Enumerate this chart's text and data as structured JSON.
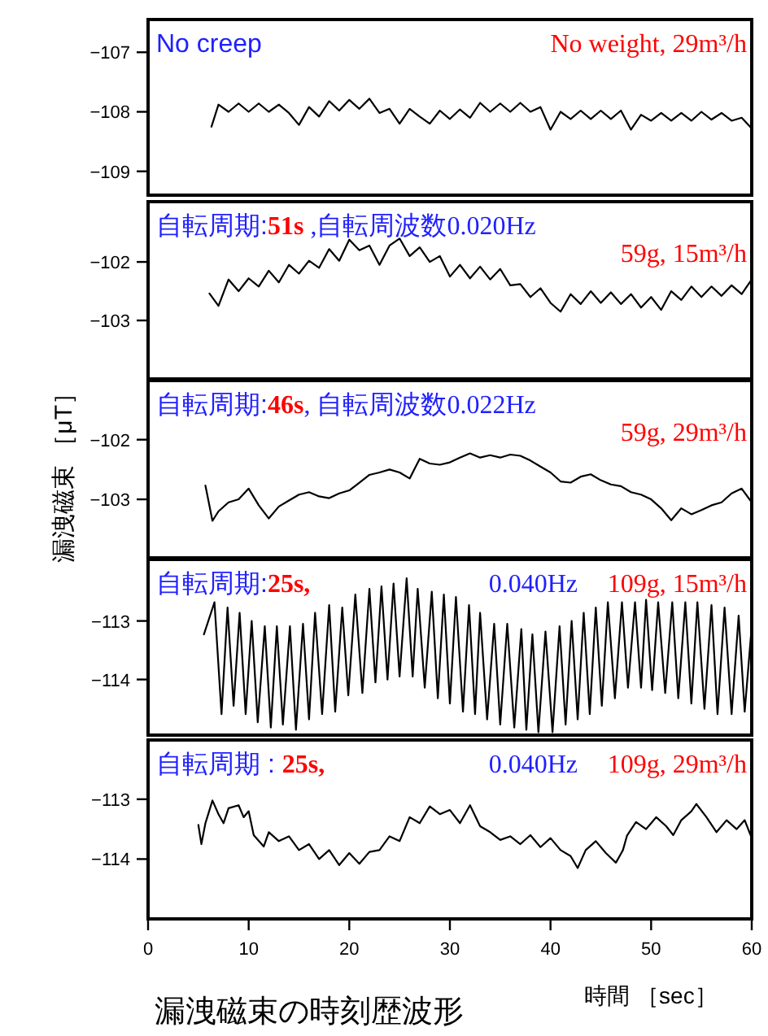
{
  "chart_data": [
    {
      "type": "line",
      "xlim": [
        0,
        60
      ],
      "ylim": [
        -109.4,
        -106.45
      ],
      "yticks": [
        -109,
        -108,
        -107
      ],
      "tick_labels": "y",
      "grid": false,
      "annotations": [
        "No creep",
        "No weight, 29m³/h"
      ],
      "x": [
        6.3,
        7,
        8,
        9,
        10,
        11,
        12,
        13,
        14,
        15,
        16,
        17,
        18,
        19,
        20,
        21,
        22,
        23,
        24,
        25,
        26,
        27,
        28,
        29,
        30,
        31,
        32,
        33,
        34,
        35,
        36,
        37,
        38,
        39,
        40,
        41,
        42,
        43,
        44,
        45,
        46,
        47,
        48,
        49,
        50,
        51,
        52,
        53,
        54,
        55,
        56,
        57,
        58,
        59,
        60
      ],
      "series": [
        {
          "color": "#000000",
          "values": [
            -108.25,
            -107.88,
            -108.0,
            -107.86,
            -108.0,
            -107.86,
            -108.0,
            -107.88,
            -108.02,
            -108.22,
            -107.92,
            -108.08,
            -107.82,
            -107.98,
            -107.8,
            -107.95,
            -107.78,
            -108.02,
            -107.95,
            -108.2,
            -107.95,
            -108.08,
            -108.2,
            -107.98,
            -108.12,
            -107.96,
            -108.1,
            -107.85,
            -108.0,
            -107.86,
            -108.0,
            -107.85,
            -108.0,
            -107.92,
            -108.3,
            -108.0,
            -108.12,
            -107.98,
            -108.12,
            -107.98,
            -108.12,
            -107.98,
            -108.3,
            -108.05,
            -108.15,
            -108.02,
            -108.15,
            -108.02,
            -108.15,
            -108.0,
            -108.13,
            -108.02,
            -108.15,
            -108.1,
            -108.28
          ]
        }
      ]
    },
    {
      "type": "line",
      "xlim": [
        0,
        60
      ],
      "ylim": [
        -104.0,
        -100.97
      ],
      "yticks": [
        -103,
        -102
      ],
      "tick_labels": "y",
      "grid": false,
      "annotations": [
        "自転周期:",
        "51s",
        " ,自転周波数0.020Hz",
        "59g, 15m³/h"
      ],
      "x": [
        6.1,
        7,
        8,
        9,
        10,
        11,
        12,
        13,
        14,
        15,
        16,
        17,
        18,
        19,
        20,
        21,
        22,
        23,
        24,
        25,
        26,
        27,
        28,
        29,
        30,
        31,
        32,
        33,
        34,
        35,
        36,
        37,
        38,
        39,
        40,
        41,
        42,
        43,
        44,
        45,
        46,
        47,
        48,
        49,
        50,
        51,
        52,
        53,
        54,
        55,
        56,
        57,
        58,
        59,
        60
      ],
      "series": [
        {
          "color": "#000000",
          "values": [
            -102.54,
            -102.75,
            -102.3,
            -102.5,
            -102.28,
            -102.42,
            -102.15,
            -102.35,
            -102.05,
            -102.2,
            -101.98,
            -102.1,
            -101.78,
            -101.98,
            -101.62,
            -101.8,
            -101.72,
            -102.05,
            -101.72,
            -101.6,
            -101.9,
            -101.75,
            -102.0,
            -101.9,
            -102.25,
            -102.05,
            -102.28,
            -102.08,
            -102.3,
            -102.12,
            -102.4,
            -102.38,
            -102.6,
            -102.45,
            -102.7,
            -102.85,
            -102.55,
            -102.72,
            -102.5,
            -102.7,
            -102.52,
            -102.72,
            -102.55,
            -102.78,
            -102.6,
            -102.82,
            -102.5,
            -102.65,
            -102.42,
            -102.6,
            -102.42,
            -102.58,
            -102.4,
            -102.55,
            -102.3
          ]
        }
      ]
    },
    {
      "type": "line",
      "xlim": [
        0,
        60
      ],
      "ylim": [
        -103.98,
        -101.01
      ],
      "yticks": [
        -103,
        -102
      ],
      "tick_labels": "y",
      "grid": false,
      "ylabel": "漏洩磁束 ［μT］",
      "annotations": [
        "自転周期:",
        "46s",
        ", 自転周波数0.022Hz",
        "59g, 29m³/h"
      ],
      "x": [
        5.7,
        6.4,
        7,
        8,
        9,
        10,
        11,
        12,
        13,
        14,
        15,
        16,
        17,
        18,
        19,
        20,
        21,
        22,
        23,
        24,
        25,
        26,
        27,
        28,
        29,
        30,
        31,
        32,
        33,
        34,
        35,
        36,
        37,
        38,
        39,
        40,
        41,
        42,
        43,
        44,
        45,
        46,
        47,
        48,
        49,
        50,
        51,
        52,
        53,
        54,
        55,
        56,
        57,
        58,
        59,
        60
      ],
      "series": [
        {
          "color": "#000000",
          "values": [
            -102.77,
            -103.36,
            -103.2,
            -103.05,
            -103.0,
            -102.82,
            -103.1,
            -103.32,
            -103.12,
            -103.02,
            -102.92,
            -102.88,
            -102.95,
            -102.98,
            -102.9,
            -102.85,
            -102.72,
            -102.59,
            -102.55,
            -102.5,
            -102.55,
            -102.65,
            -102.32,
            -102.4,
            -102.42,
            -102.38,
            -102.3,
            -102.23,
            -102.3,
            -102.26,
            -102.3,
            -102.25,
            -102.27,
            -102.35,
            -102.45,
            -102.55,
            -102.7,
            -102.72,
            -102.62,
            -102.58,
            -102.68,
            -102.75,
            -102.78,
            -102.88,
            -102.92,
            -103.0,
            -103.15,
            -103.35,
            -103.15,
            -103.25,
            -103.18,
            -103.1,
            -103.05,
            -102.9,
            -102.82,
            -103.05
          ]
        }
      ]
    },
    {
      "type": "line",
      "xlim": [
        0,
        60
      ],
      "ylim": [
        -114.95,
        -111.95
      ],
      "yticks": [
        -114,
        -113
      ],
      "tick_labels": "y",
      "grid": false,
      "annotations": [
        "自転周期:",
        "25s,",
        "0.040Hz",
        "109g, 15m³/h"
      ],
      "x": [
        5.55,
        6.6,
        7.3,
        7.9,
        8.5,
        9.1,
        9.7,
        10.3,
        10.9,
        11.6,
        12.2,
        12.8,
        13.4,
        14.1,
        14.7,
        15.4,
        16.0,
        16.6,
        17.3,
        18.0,
        18.6,
        19.3,
        19.9,
        20.6,
        21.3,
        22.0,
        22.6,
        23.2,
        23.8,
        24.4,
        25.0,
        25.7,
        26.3,
        26.8,
        27.5,
        28.2,
        28.8,
        29.4,
        30.0,
        30.6,
        31.3,
        31.9,
        32.5,
        33.0,
        33.7,
        34.4,
        35.0,
        35.7,
        36.4,
        37.1,
        37.6,
        38.2,
        38.8,
        39.5,
        40.2,
        40.9,
        41.5,
        42.1,
        42.7,
        43.3,
        43.9,
        44.5,
        45.1,
        45.7,
        46.4,
        47.1,
        47.7,
        48.4,
        49.0,
        49.5,
        50.1,
        50.7,
        51.4,
        52.1,
        52.7,
        53.4,
        54.0,
        54.6,
        55.3,
        56.0,
        56.6,
        57.3,
        58.0,
        58.7,
        59.3,
        60.0
      ],
      "series": [
        {
          "color": "#000000",
          "values": [
            -113.23,
            -112.68,
            -114.59,
            -112.77,
            -114.45,
            -112.86,
            -114.59,
            -113.0,
            -114.73,
            -113.09,
            -114.82,
            -113.09,
            -114.77,
            -113.09,
            -114.86,
            -113.05,
            -114.68,
            -112.86,
            -114.59,
            -112.73,
            -114.55,
            -112.77,
            -114.27,
            -112.55,
            -114.23,
            -112.45,
            -114.05,
            -112.41,
            -114.0,
            -112.36,
            -113.95,
            -112.27,
            -113.95,
            -112.45,
            -114.14,
            -112.5,
            -114.32,
            -112.55,
            -114.41,
            -112.59,
            -114.55,
            -112.73,
            -114.59,
            -112.86,
            -114.68,
            -113.05,
            -114.77,
            -113.05,
            -114.82,
            -113.14,
            -114.86,
            -113.23,
            -114.9,
            -113.18,
            -114.9,
            -113.09,
            -114.77,
            -113.0,
            -114.68,
            -112.86,
            -114.59,
            -112.77,
            -114.45,
            -112.68,
            -114.32,
            -112.68,
            -114.14,
            -112.68,
            -114.14,
            -112.64,
            -114.18,
            -112.68,
            -114.23,
            -112.68,
            -114.32,
            -112.68,
            -114.41,
            -112.68,
            -114.5,
            -112.73,
            -114.59,
            -112.77,
            -114.59,
            -112.91,
            -114.55,
            -113.09
          ]
        }
      ]
    },
    {
      "type": "line",
      "xlim": [
        0,
        60
      ],
      "ylim": [
        -115.0,
        -112.01
      ],
      "yticks": [
        -114,
        -113
      ],
      "xticks": [
        0,
        10,
        20,
        30,
        40,
        50,
        60
      ],
      "grid": false,
      "title": "漏洩磁束の時刻歴波形",
      "xlabel": "時間 ［sec］",
      "annotations": [
        "自転周期 : ",
        "25s,",
        "0.040Hz",
        "109g, 29m³/h"
      ],
      "x": [
        5.0,
        5.3,
        5.7,
        6.4,
        7,
        7.5,
        8,
        9,
        9.5,
        10,
        10.5,
        11.5,
        12,
        13,
        14,
        15,
        16,
        17,
        18,
        19,
        20,
        21,
        22,
        23,
        24,
        25,
        26,
        27,
        28,
        29,
        30,
        31,
        32,
        33,
        34,
        35,
        36,
        37,
        38,
        39,
        40,
        41,
        42,
        42.7,
        43.5,
        44.5,
        45.5,
        46.5,
        47.2,
        47.6,
        48.5,
        49.5,
        50.5,
        51.5,
        52.2,
        53,
        54,
        54.5,
        55.5,
        56.5,
        57.5,
        58.5,
        59.3,
        60
      ],
      "series": [
        {
          "color": "#000000",
          "values": [
            -113.43,
            -113.75,
            -113.4,
            -113.02,
            -113.25,
            -113.4,
            -113.15,
            -113.1,
            -113.3,
            -113.2,
            -113.6,
            -113.79,
            -113.55,
            -113.7,
            -113.62,
            -113.85,
            -113.75,
            -114.0,
            -113.85,
            -114.1,
            -113.9,
            -114.08,
            -113.88,
            -113.85,
            -113.62,
            -113.7,
            -113.3,
            -113.4,
            -113.12,
            -113.25,
            -113.18,
            -113.4,
            -113.1,
            -113.45,
            -113.55,
            -113.68,
            -113.62,
            -113.75,
            -113.6,
            -113.8,
            -113.65,
            -113.85,
            -113.95,
            -114.15,
            -113.85,
            -113.7,
            -113.9,
            -114.06,
            -113.85,
            -113.61,
            -113.38,
            -113.5,
            -113.3,
            -113.45,
            -113.6,
            -113.35,
            -113.2,
            -113.08,
            -113.3,
            -113.55,
            -113.35,
            -113.5,
            -113.35,
            -113.65
          ]
        }
      ]
    }
  ]
}
